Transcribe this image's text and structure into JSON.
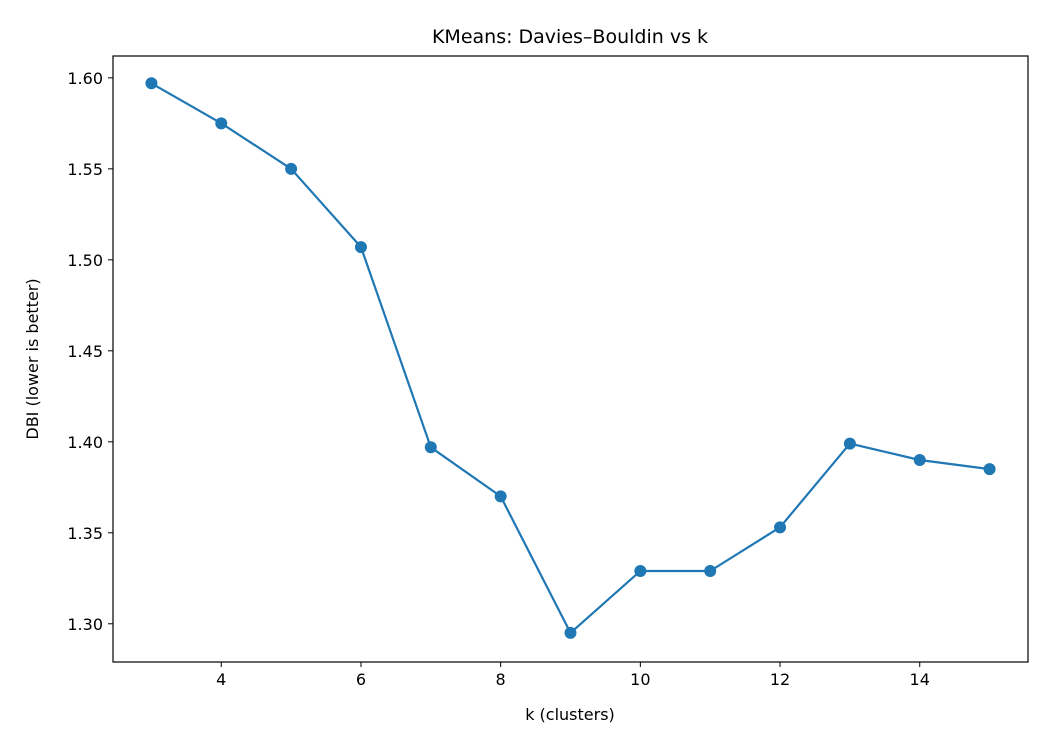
{
  "chart_data": {
    "type": "line",
    "title": "KMeans: Davies–Bouldin vs k",
    "xlabel": "k (clusters)",
    "ylabel": "DBI (lower is better)",
    "xlim": [
      2.45,
      15.55
    ],
    "ylim": [
      1.279,
      1.612
    ],
    "xticks": [
      4,
      6,
      8,
      10,
      12,
      14
    ],
    "yticks": [
      1.3,
      1.35,
      1.4,
      1.45,
      1.5,
      1.55,
      1.6
    ],
    "ytick_labels": [
      "1.30",
      "1.35",
      "1.40",
      "1.45",
      "1.50",
      "1.55",
      "1.60"
    ],
    "grid": false,
    "legend": "none",
    "series": [
      {
        "color": "#1f77b4",
        "marker": "circle",
        "x": [
          3,
          4,
          5,
          6,
          7,
          8,
          9,
          10,
          11,
          12,
          13,
          14,
          15
        ],
        "y": [
          1.597,
          1.575,
          1.55,
          1.507,
          1.397,
          1.37,
          1.295,
          1.329,
          1.329,
          1.353,
          1.399,
          1.39,
          1.385
        ]
      }
    ]
  }
}
